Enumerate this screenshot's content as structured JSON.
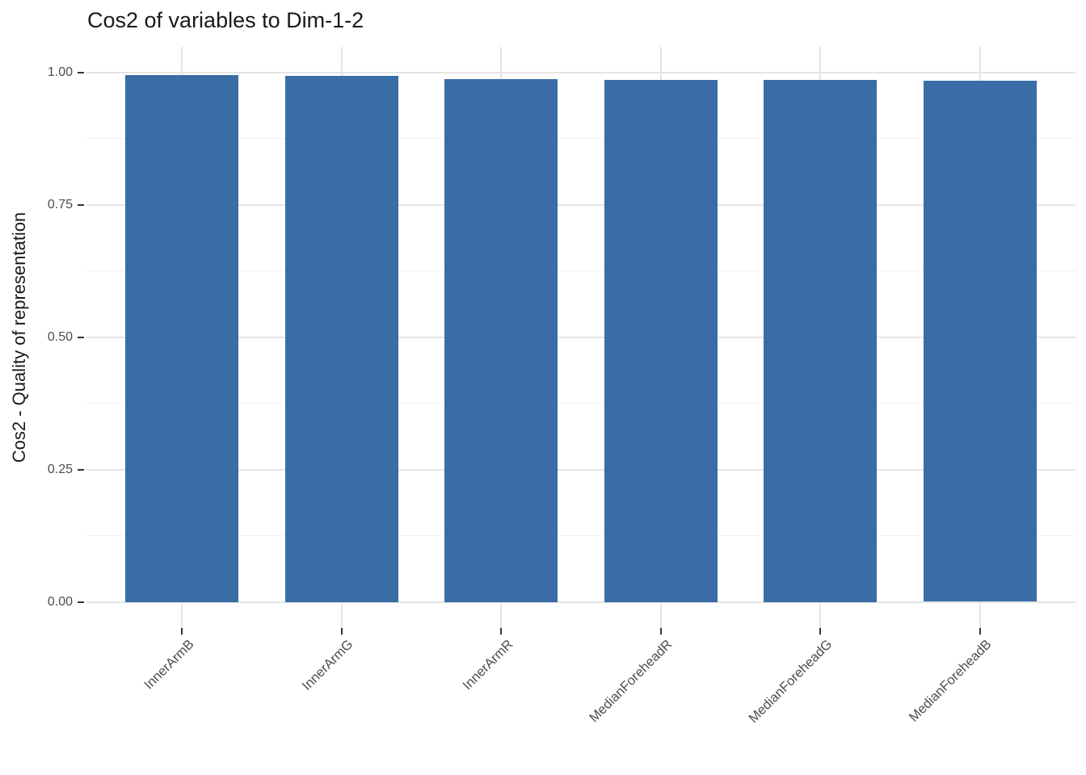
{
  "figure": {
    "background": "#ffffff"
  },
  "chart_data": {
    "type": "bar",
    "title": "Cos2 of variables to Dim-1-2",
    "xlabel": "",
    "ylabel": "Cos2 - Quality of representation",
    "categories": [
      "InnerArmB",
      "InnerArmG",
      "InnerArmR",
      "MedianForeheadR",
      "MedianForeheadG",
      "MedianForeheadB"
    ],
    "values": [
      0.996,
      0.994,
      0.988,
      0.987,
      0.987,
      0.984
    ],
    "ylim": [
      0,
      1.05
    ],
    "y_major_ticks": [
      0,
      0.25,
      0.5,
      0.75,
      1
    ],
    "y_minor_ticks": [
      0.125,
      0.375,
      0.625,
      0.875
    ],
    "y_tick_labels": [
      "0.00",
      "0.25",
      "0.50",
      "0.75",
      "1.00"
    ],
    "x_tick_rotation_deg": 45,
    "grid": true,
    "legend_position": "none",
    "colors": {
      "bar_fill": "#3a6ca6",
      "grid_major": "#e4e4e4",
      "grid_minor": "#f1f1f1",
      "tick_mark": "#333333",
      "axis_text": "#4d4d4d",
      "title_text": "#1a1a1a"
    }
  }
}
